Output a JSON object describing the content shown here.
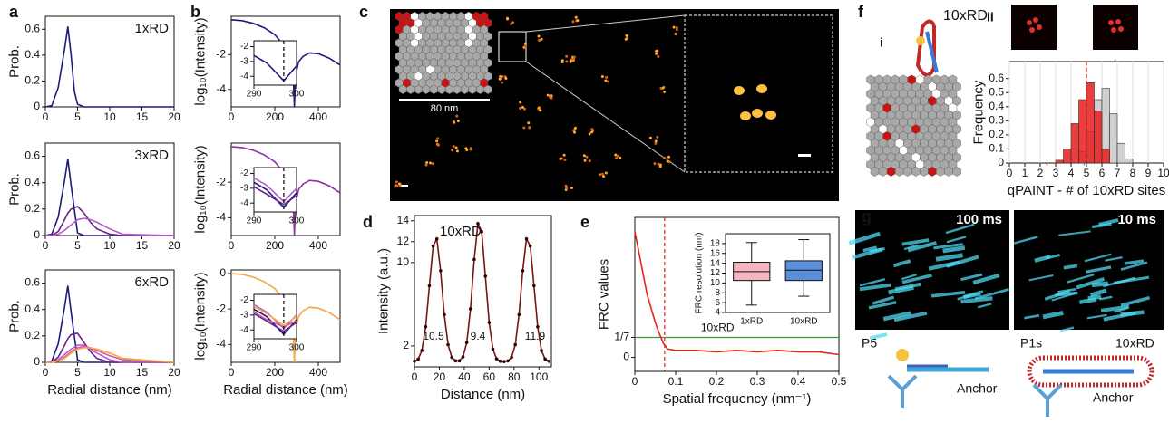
{
  "figure": {
    "panel_labels": [
      "a",
      "b",
      "c",
      "d",
      "e",
      "f",
      "g"
    ],
    "c": {
      "scale_bar": "80 nm"
    },
    "f": {
      "sub_i": "i",
      "sub_ii": "ii",
      "construct": "10xRD"
    },
    "g": {
      "exposure_left": "100 ms",
      "exposure_right": "10 ms",
      "probe_left": "P5",
      "anchor_left": "Anchor",
      "probe_right": "P1s",
      "construct_right": "10xRD",
      "anchor_right": "Anchor"
    }
  },
  "chart_data": [
    {
      "type": "line",
      "ylabel": "Prob.",
      "annotation": "1xRD",
      "xlim": [
        0,
        20
      ],
      "ylim": [
        0,
        0.7
      ],
      "xticks": [
        0,
        5,
        10,
        15,
        20
      ],
      "yticks": [
        0,
        0.2,
        0.4,
        0.6
      ],
      "x": [
        0,
        1,
        2,
        3,
        3.5,
        4,
        4.5,
        5,
        6,
        8,
        20
      ],
      "series": [
        {
          "color": "#1c1c7a",
          "values": [
            0,
            0.01,
            0.15,
            0.45,
            0.62,
            0.4,
            0.12,
            0.02,
            0,
            0,
            0
          ]
        }
      ]
    },
    {
      "type": "line",
      "ylabel": "Prob.",
      "annotation": "3xRD",
      "xlim": [
        0,
        20
      ],
      "ylim": [
        0,
        0.7
      ],
      "xticks": [
        0,
        5,
        10,
        15,
        20
      ],
      "yticks": [
        0,
        0.2,
        0.4,
        0.6
      ],
      "x": [
        0,
        1,
        2,
        3,
        3.5,
        4,
        5,
        6,
        7,
        8,
        10,
        12,
        20
      ],
      "series": [
        {
          "color": "#1c1c7a",
          "values": [
            0,
            0.01,
            0.14,
            0.42,
            0.58,
            0.38,
            0.02,
            0,
            0,
            0,
            0,
            0,
            0
          ]
        },
        {
          "color": "#6a1f8c",
          "values": [
            0,
            0,
            0.03,
            0.12,
            0.17,
            0.2,
            0.22,
            0.17,
            0.1,
            0.05,
            0.01,
            0,
            0
          ]
        },
        {
          "color": "#b45cc8",
          "values": [
            0,
            0,
            0.01,
            0.04,
            0.06,
            0.08,
            0.12,
            0.13,
            0.12,
            0.1,
            0.05,
            0.01,
            0
          ]
        }
      ]
    },
    {
      "type": "line",
      "ylabel": "Prob.",
      "xlabel": "Radial distance (nm)",
      "annotation": "6xRD",
      "xlim": [
        0,
        20
      ],
      "ylim": [
        0,
        0.7
      ],
      "xticks": [
        0,
        5,
        10,
        15,
        20
      ],
      "yticks": [
        0,
        0.2,
        0.4,
        0.6
      ],
      "x": [
        0,
        1,
        2,
        3,
        3.5,
        4,
        5,
        6,
        7,
        8,
        10,
        12,
        20
      ],
      "series": [
        {
          "color": "#1c1c7a",
          "values": [
            0,
            0.01,
            0.14,
            0.42,
            0.58,
            0.38,
            0.02,
            0,
            0,
            0,
            0,
            0,
            0
          ]
        },
        {
          "color": "#6a1f8c",
          "values": [
            0,
            0,
            0.04,
            0.13,
            0.18,
            0.21,
            0.22,
            0.15,
            0.08,
            0.03,
            0,
            0,
            0
          ]
        },
        {
          "color": "#b45cc8",
          "values": [
            0,
            0,
            0.02,
            0.06,
            0.08,
            0.1,
            0.13,
            0.13,
            0.1,
            0.07,
            0.02,
            0,
            0
          ]
        },
        {
          "color": "#d65aa0",
          "values": [
            0,
            0,
            0.01,
            0.04,
            0.06,
            0.08,
            0.11,
            0.12,
            0.11,
            0.09,
            0.05,
            0.02,
            0
          ]
        },
        {
          "color": "#f5a742",
          "values": [
            0,
            0,
            0.01,
            0.03,
            0.05,
            0.07,
            0.1,
            0.11,
            0.11,
            0.1,
            0.07,
            0.03,
            0
          ]
        }
      ]
    },
    {
      "type": "line",
      "ylabel": "log₁₀(Intensity)",
      "xlim": [
        0,
        500
      ],
      "ylim": [
        -5,
        0.2
      ],
      "xticks": [
        0,
        200,
        400
      ],
      "yticks": [
        -4,
        -2
      ],
      "x": [
        0,
        50,
        100,
        150,
        200,
        250,
        270,
        285,
        290,
        295,
        310,
        330,
        360,
        400,
        450,
        500
      ],
      "series": [
        {
          "color": "#1c1c7a",
          "values": [
            0,
            -0.05,
            -0.2,
            -0.45,
            -0.85,
            -1.6,
            -2.1,
            -3.2,
            -5,
            -3.2,
            -2.4,
            -2.1,
            -1.9,
            -1.95,
            -2.2,
            -2.6
          ]
        }
      ],
      "inset": {
        "type": "line",
        "xlim": [
          290,
          300
        ],
        "ylim": [
          -4.6,
          -1.6
        ],
        "xticks": [
          290,
          300
        ],
        "yticks": [
          -4,
          -3,
          -2
        ],
        "vline": 297,
        "x": [
          290,
          293,
          297,
          300
        ],
        "series": [
          {
            "color": "#1c1c7a",
            "values": [
              -2.6,
              -3.1,
              -4.3,
              -3.3
            ]
          }
        ]
      }
    },
    {
      "type": "line",
      "ylabel": "log₁₀(Intensity)",
      "xlim": [
        0,
        500
      ],
      "ylim": [
        -5,
        0.2
      ],
      "xticks": [
        0,
        200,
        400
      ],
      "yticks": [
        -4,
        -2
      ],
      "x": [
        0,
        50,
        100,
        150,
        200,
        250,
        270,
        285,
        290,
        295,
        310,
        330,
        360,
        400,
        450,
        500
      ],
      "series": [
        {
          "color": "#8e2fa8",
          "values": [
            0,
            -0.05,
            -0.2,
            -0.45,
            -0.85,
            -1.6,
            -2.1,
            -3.2,
            -5,
            -3.2,
            -2.4,
            -2.1,
            -1.9,
            -1.95,
            -2.2,
            -2.6
          ]
        }
      ],
      "inset": {
        "type": "line",
        "xlim": [
          290,
          300
        ],
        "ylim": [
          -4.6,
          -1.6
        ],
        "xticks": [
          290,
          300
        ],
        "yticks": [
          -4,
          -3,
          -2
        ],
        "vline": 297,
        "x": [
          290,
          293,
          297,
          300
        ],
        "series": [
          {
            "color": "#1c1c7a",
            "values": [
              -2.6,
              -3.1,
              -4.3,
              -3.3
            ]
          },
          {
            "color": "#6a1f8c",
            "values": [
              -2.9,
              -3.4,
              -4.1,
              -3.5
            ]
          },
          {
            "color": "#b45cc8",
            "values": [
              -2.3,
              -2.8,
              -3.9,
              -3.0
            ]
          }
        ]
      }
    },
    {
      "type": "line",
      "ylabel": "log₁₀(Intensity)",
      "xlabel": "Radial distance (nm)",
      "xlim": [
        0,
        500
      ],
      "ylim": [
        -5,
        0.2
      ],
      "xticks": [
        0,
        200,
        400
      ],
      "yticks": [
        -4,
        -2,
        0
      ],
      "x": [
        0,
        50,
        100,
        150,
        200,
        250,
        270,
        285,
        290,
        295,
        310,
        330,
        360,
        400,
        450,
        500
      ],
      "series": [
        {
          "color": "#f5a742",
          "values": [
            0,
            -0.05,
            -0.2,
            -0.45,
            -0.85,
            -1.6,
            -2.1,
            -3.2,
            -5,
            -3.2,
            -2.4,
            -2.1,
            -1.9,
            -1.95,
            -2.2,
            -2.6
          ]
        }
      ],
      "inset": {
        "type": "line",
        "xlim": [
          290,
          300
        ],
        "ylim": [
          -4.6,
          -1.6
        ],
        "xticks": [
          290,
          300
        ],
        "yticks": [
          -4,
          -3,
          -2
        ],
        "vline": 297,
        "x": [
          290,
          293,
          297,
          300
        ],
        "series": [
          {
            "color": "#1c1c7a",
            "values": [
              -2.6,
              -3.1,
              -4.3,
              -3.3
            ]
          },
          {
            "color": "#6a1f8c",
            "values": [
              -2.9,
              -3.4,
              -4.1,
              -3.5
            ]
          },
          {
            "color": "#b45cc8",
            "values": [
              -2.3,
              -2.8,
              -3.9,
              -3.0
            ]
          },
          {
            "color": "#d65aa0",
            "values": [
              -2.8,
              -3.3,
              -3.8,
              -3.4
            ]
          },
          {
            "color": "#f5a742",
            "values": [
              -2.4,
              -2.9,
              -3.7,
              -3.1
            ]
          }
        ]
      }
    },
    {
      "type": "line",
      "ylabel": "Intensity (a.u.)",
      "xlabel": "Distance (nm)",
      "annotation": "10xRD",
      "markers": true,
      "xlim": [
        0,
        110
      ],
      "ylim": [
        0,
        14.5
      ],
      "xticks": [
        0,
        20,
        40,
        60,
        80,
        100
      ],
      "yticks": [
        2,
        10,
        12,
        14
      ],
      "peak_widths": [
        10.5,
        9.4,
        11.9
      ],
      "x": [
        0,
        3,
        6,
        9,
        12,
        15,
        18,
        21,
        24,
        27,
        30,
        33,
        36,
        39,
        42,
        45,
        48,
        51,
        54,
        57,
        60,
        63,
        66,
        69,
        72,
        75,
        78,
        81,
        84,
        87,
        90,
        93,
        96,
        99,
        102,
        105,
        108
      ],
      "series": [
        {
          "color": "#7a1414",
          "values": [
            0.54,
            0.74,
            1.57,
            3.84,
            7.78,
            11.58,
            12.26,
            9.21,
            5.0,
            2.12,
            0.91,
            0.58,
            0.58,
            0.96,
            2.33,
            5.56,
            10.3,
            13.73,
            12.96,
            8.69,
            4.25,
            1.7,
            0.77,
            0.54,
            0.51,
            0.57,
            0.91,
            2.12,
            5.0,
            9.21,
            12.26,
            11.58,
            7.78,
            3.84,
            1.57,
            0.74,
            0.54
          ]
        }
      ]
    },
    {
      "type": "line",
      "ylabel": "FRC values",
      "xlabel": "Spatial frequency (nm⁻¹)",
      "annotation": "10xRD",
      "xlim": [
        0,
        0.5
      ],
      "ylim": [
        -0.1,
        1
      ],
      "xticks": [
        0,
        0.1,
        0.2,
        0.3,
        0.4,
        0.5
      ],
      "yticks": [
        0,
        {
          "value": 0.142857,
          "label": "1/7"
        }
      ],
      "threshold": 0.142857,
      "threshold_color": "#3a9a3a",
      "vline": 0.073,
      "x": [
        0,
        0.01,
        0.02,
        0.03,
        0.04,
        0.05,
        0.06,
        0.07,
        0.08,
        0.1,
        0.15,
        0.2,
        0.25,
        0.3,
        0.35,
        0.4,
        0.45,
        0.5
      ],
      "series": [
        {
          "color": "#e8241c",
          "values": [
            0.9,
            0.75,
            0.6,
            0.45,
            0.35,
            0.25,
            0.17,
            0.1,
            0.06,
            0.05,
            0.05,
            0.04,
            0.05,
            0.04,
            0.05,
            0.04,
            0.04,
            0.02
          ]
        }
      ]
    },
    {
      "type": "box",
      "ylabel": "FRC resolution (nm)",
      "categories": [
        "1xRD",
        "10xRD"
      ],
      "ylim": [
        4,
        20
      ],
      "yticks": [
        4,
        6,
        8,
        10,
        12,
        14,
        16,
        18
      ],
      "boxes": [
        {
          "color": "#f4b6c0",
          "whislo": 5.5,
          "q1": 10.5,
          "median": 12.3,
          "q3": 14.2,
          "whishi": 18.2
        },
        {
          "color": "#5b8fd9",
          "whislo": 7.3,
          "q1": 10.5,
          "median": 12.6,
          "q3": 14.5,
          "whishi": 18.8
        }
      ]
    },
    {
      "type": "histogram",
      "ylabel": "Frequency",
      "xlabel": "qPAINT - # of 10xRD sites",
      "grid": true,
      "vline": 5,
      "xlim": [
        0,
        10
      ],
      "ylim": [
        0,
        0.72
      ],
      "xticks": [
        0,
        1,
        2,
        3,
        4,
        5,
        6,
        7,
        8,
        9,
        10
      ],
      "yticks": [
        0,
        0.1,
        0.2,
        0.3,
        0.4,
        0.5,
        0.6
      ],
      "series": [
        {
          "color": "#c8c8c8",
          "bins": [
            4.5,
            5,
            5.5,
            6,
            6.5,
            7,
            7.5,
            8
          ],
          "values": [
            0.08,
            0.22,
            0.45,
            0.53,
            0.35,
            0.14,
            0.03
          ]
        },
        {
          "color": "#e81c1c",
          "bins": [
            3,
            3.5,
            4,
            4.5,
            5,
            5.5,
            6,
            6.5
          ],
          "values": [
            0.02,
            0.1,
            0.28,
            0.45,
            0.57,
            0.37,
            0.1
          ]
        }
      ]
    }
  ]
}
